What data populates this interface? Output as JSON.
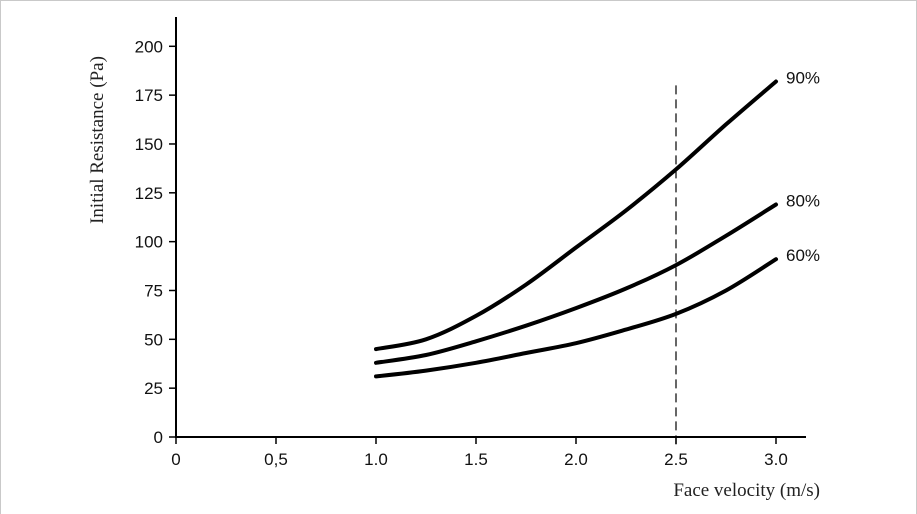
{
  "chart_data": {
    "type": "line",
    "xlabel": "Face velocity (m/s)",
    "ylabel": "Initial Resistance (Pa)",
    "xlim": [
      0,
      3.15
    ],
    "ylim": [
      0,
      215
    ],
    "x_ticks": [
      {
        "value": 0,
        "label": "0"
      },
      {
        "value": 0.5,
        "label": "0,5"
      },
      {
        "value": 1.0,
        "label": "1.0"
      },
      {
        "value": 1.5,
        "label": "1.5"
      },
      {
        "value": 2.0,
        "label": "2.0"
      },
      {
        "value": 2.5,
        "label": "2.5"
      },
      {
        "value": 3.0,
        "label": "3.0"
      }
    ],
    "y_ticks": [
      {
        "value": 0,
        "label": "0"
      },
      {
        "value": 25,
        "label": "25"
      },
      {
        "value": 50,
        "label": "50"
      },
      {
        "value": 75,
        "label": "75"
      },
      {
        "value": 100,
        "label": "100"
      },
      {
        "value": 125,
        "label": "125"
      },
      {
        "value": 150,
        "label": "150"
      },
      {
        "value": 175,
        "label": "175"
      },
      {
        "value": 200,
        "label": "200"
      }
    ],
    "reference_line": {
      "x": 2.5,
      "style": "dashed",
      "y_range": [
        0,
        180
      ]
    },
    "series": [
      {
        "name": "90%",
        "color": "#000000",
        "x": [
          1.0,
          1.25,
          1.5,
          1.75,
          2.0,
          2.25,
          2.5,
          2.75,
          3.0
        ],
        "y": [
          45,
          50,
          62,
          78,
          97,
          116,
          137,
          160,
          182
        ]
      },
      {
        "name": "80%",
        "color": "#000000",
        "x": [
          1.0,
          1.25,
          1.5,
          1.75,
          2.0,
          2.25,
          2.5,
          2.75,
          3.0
        ],
        "y": [
          38,
          42,
          49,
          57,
          66,
          76,
          88,
          103,
          119
        ]
      },
      {
        "name": "60%",
        "color": "#000000",
        "x": [
          1.0,
          1.25,
          1.5,
          1.75,
          2.0,
          2.25,
          2.5,
          2.75,
          3.0
        ],
        "y": [
          31,
          34,
          38,
          43,
          48,
          55,
          63,
          75,
          91
        ]
      }
    ]
  }
}
